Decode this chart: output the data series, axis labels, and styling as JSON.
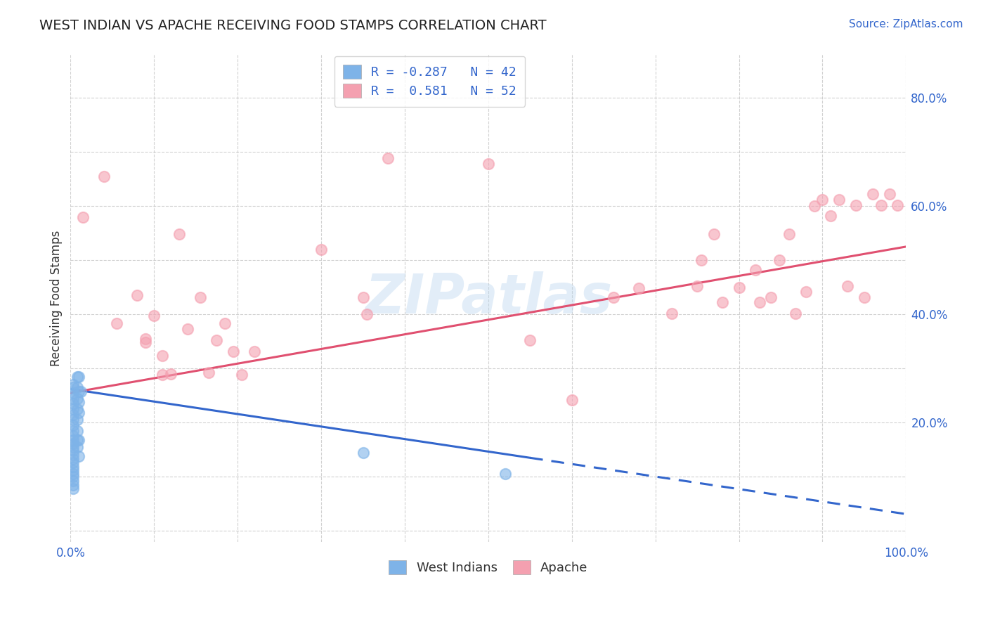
{
  "title": "WEST INDIAN VS APACHE RECEIVING FOOD STAMPS CORRELATION CHART",
  "source": "Source: ZipAtlas.com",
  "ylabel": "Receiving Food Stamps",
  "xlim": [
    0.0,
    1.0
  ],
  "ylim": [
    -0.02,
    0.88
  ],
  "west_indian_color": "#7EB3E8",
  "apache_color": "#F4A0B0",
  "west_indian_line_color": "#3366CC",
  "apache_line_color": "#E05070",
  "west_indian_R": -0.287,
  "west_indian_N": 42,
  "apache_R": 0.581,
  "apache_N": 52,
  "legend_color": "#3366CC",
  "title_color": "#3366CC",
  "background_color": "#FFFFFF",
  "grid_color": "#CCCCCC",
  "watermark": "ZIPatlas",
  "west_indian_scatter": [
    [
      0.003,
      0.27
    ],
    [
      0.003,
      0.265
    ],
    [
      0.003,
      0.255
    ],
    [
      0.003,
      0.245
    ],
    [
      0.003,
      0.235
    ],
    [
      0.003,
      0.225
    ],
    [
      0.003,
      0.215
    ],
    [
      0.003,
      0.205
    ],
    [
      0.003,
      0.195
    ],
    [
      0.003,
      0.185
    ],
    [
      0.003,
      0.175
    ],
    [
      0.003,
      0.168
    ],
    [
      0.003,
      0.162
    ],
    [
      0.003,
      0.155
    ],
    [
      0.003,
      0.148
    ],
    [
      0.003,
      0.14
    ],
    [
      0.003,
      0.133
    ],
    [
      0.003,
      0.126
    ],
    [
      0.003,
      0.118
    ],
    [
      0.003,
      0.112
    ],
    [
      0.003,
      0.106
    ],
    [
      0.003,
      0.1
    ],
    [
      0.003,
      0.092
    ],
    [
      0.003,
      0.085
    ],
    [
      0.003,
      0.078
    ],
    [
      0.008,
      0.285
    ],
    [
      0.008,
      0.265
    ],
    [
      0.008,
      0.245
    ],
    [
      0.008,
      0.225
    ],
    [
      0.008,
      0.205
    ],
    [
      0.008,
      0.185
    ],
    [
      0.008,
      0.168
    ],
    [
      0.008,
      0.155
    ],
    [
      0.01,
      0.285
    ],
    [
      0.01,
      0.258
    ],
    [
      0.01,
      0.238
    ],
    [
      0.01,
      0.218
    ],
    [
      0.01,
      0.168
    ],
    [
      0.01,
      0.138
    ],
    [
      0.012,
      0.258
    ],
    [
      0.35,
      0.145
    ],
    [
      0.52,
      0.105
    ]
  ],
  "apache_scatter": [
    [
      0.015,
      0.58
    ],
    [
      0.04,
      0.655
    ],
    [
      0.055,
      0.383
    ],
    [
      0.08,
      0.435
    ],
    [
      0.09,
      0.348
    ],
    [
      0.09,
      0.355
    ],
    [
      0.1,
      0.398
    ],
    [
      0.11,
      0.323
    ],
    [
      0.11,
      0.288
    ],
    [
      0.12,
      0.29
    ],
    [
      0.13,
      0.548
    ],
    [
      0.14,
      0.373
    ],
    [
      0.155,
      0.432
    ],
    [
      0.165,
      0.292
    ],
    [
      0.175,
      0.352
    ],
    [
      0.185,
      0.383
    ],
    [
      0.195,
      0.332
    ],
    [
      0.205,
      0.288
    ],
    [
      0.22,
      0.332
    ],
    [
      0.3,
      0.52
    ],
    [
      0.35,
      0.432
    ],
    [
      0.355,
      0.4
    ],
    [
      0.38,
      0.688
    ],
    [
      0.5,
      0.678
    ],
    [
      0.55,
      0.352
    ],
    [
      0.6,
      0.242
    ],
    [
      0.65,
      0.432
    ],
    [
      0.68,
      0.448
    ],
    [
      0.72,
      0.402
    ],
    [
      0.75,
      0.452
    ],
    [
      0.755,
      0.5
    ],
    [
      0.77,
      0.548
    ],
    [
      0.78,
      0.422
    ],
    [
      0.8,
      0.45
    ],
    [
      0.82,
      0.482
    ],
    [
      0.825,
      0.422
    ],
    [
      0.838,
      0.432
    ],
    [
      0.848,
      0.5
    ],
    [
      0.86,
      0.548
    ],
    [
      0.868,
      0.402
    ],
    [
      0.88,
      0.442
    ],
    [
      0.89,
      0.6
    ],
    [
      0.9,
      0.612
    ],
    [
      0.91,
      0.582
    ],
    [
      0.92,
      0.612
    ],
    [
      0.93,
      0.452
    ],
    [
      0.94,
      0.602
    ],
    [
      0.95,
      0.432
    ],
    [
      0.96,
      0.622
    ],
    [
      0.97,
      0.602
    ],
    [
      0.98,
      0.622
    ],
    [
      0.99,
      0.602
    ]
  ]
}
